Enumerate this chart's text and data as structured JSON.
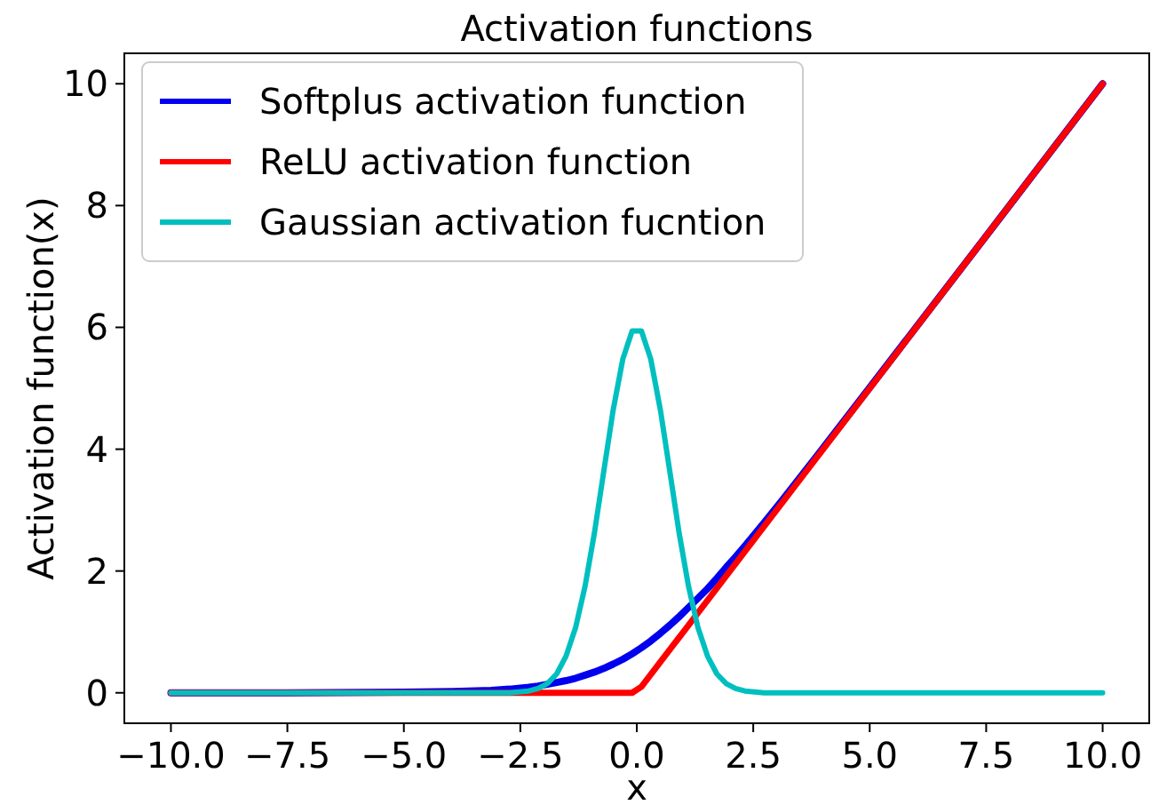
{
  "chart_data": {
    "type": "line",
    "title": "Activation functions",
    "xlabel": "x",
    "ylabel": "Activation function(x)",
    "xlim": [
      -11,
      11
    ],
    "ylim": [
      -0.5,
      10.5
    ],
    "xticks": [
      {
        "value": -10,
        "label": "−10.0"
      },
      {
        "value": -7.5,
        "label": "−7.5"
      },
      {
        "value": -5,
        "label": "−5.0"
      },
      {
        "value": -2.5,
        "label": "−2.5"
      },
      {
        "value": 0,
        "label": "0.0"
      },
      {
        "value": 2.5,
        "label": "2.5"
      },
      {
        "value": 5,
        "label": "5.0"
      },
      {
        "value": 7.5,
        "label": "7.5"
      },
      {
        "value": 10,
        "label": "10.0"
      }
    ],
    "yticks": [
      0,
      2,
      4,
      6,
      8,
      10
    ],
    "legend": "top left",
    "grid": false,
    "marker": "none",
    "line_style": "solid",
    "series": [
      {
        "name": "Softplus activation function",
        "color": "#0000ee",
        "x": [
          -10,
          -7.5,
          -5,
          -3.94,
          -3.13,
          -2.73,
          -2.32,
          -2.12,
          -1.92,
          -1.72,
          -1.52,
          -1.31,
          -1.11,
          -0.91,
          -0.71,
          -0.51,
          -0.3,
          -0.1,
          0.1,
          0.3,
          0.51,
          0.71,
          0.91,
          1.11,
          1.31,
          1.52,
          1.72,
          1.92,
          2.12,
          2.32,
          2.73,
          3.13,
          3.94,
          5,
          7.5,
          10
        ],
        "values": [
          0,
          0,
          0.01,
          0.02,
          0.04,
          0.06,
          0.09,
          0.11,
          0.14,
          0.17,
          0.2,
          0.24,
          0.29,
          0.34,
          0.4,
          0.47,
          0.55,
          0.64,
          0.74,
          0.85,
          0.98,
          1.11,
          1.25,
          1.4,
          1.55,
          1.71,
          1.88,
          2.06,
          2.23,
          2.41,
          2.79,
          3.17,
          3.96,
          5.01,
          7.5,
          10
        ]
      },
      {
        "name": "ReLU activation function",
        "color": "#ff0000",
        "x": [
          -10,
          -0.1,
          0.1,
          10
        ],
        "values": [
          0,
          0,
          0.1,
          10
        ]
      },
      {
        "name": "Gaussian activation fucntion",
        "color": "#00bfbf",
        "x": [
          -10,
          -3.94,
          -3.13,
          -2.73,
          -2.32,
          -2.12,
          -1.92,
          -1.72,
          -1.52,
          -1.31,
          -1.11,
          -0.91,
          -0.71,
          -0.51,
          -0.3,
          -0.1,
          0.1,
          0.3,
          0.51,
          0.71,
          0.91,
          1.11,
          1.31,
          1.52,
          1.72,
          1.92,
          2.12,
          2.32,
          2.73,
          3.13,
          3.94,
          10
        ],
        "values": [
          0,
          0,
          0,
          0,
          0.03,
          0.07,
          0.15,
          0.31,
          0.6,
          1.08,
          1.75,
          2.62,
          3.63,
          4.63,
          5.48,
          5.94,
          5.94,
          5.48,
          4.63,
          3.63,
          2.62,
          1.75,
          1.08,
          0.6,
          0.31,
          0.15,
          0.07,
          0.03,
          0,
          0,
          0,
          0
        ]
      }
    ]
  }
}
